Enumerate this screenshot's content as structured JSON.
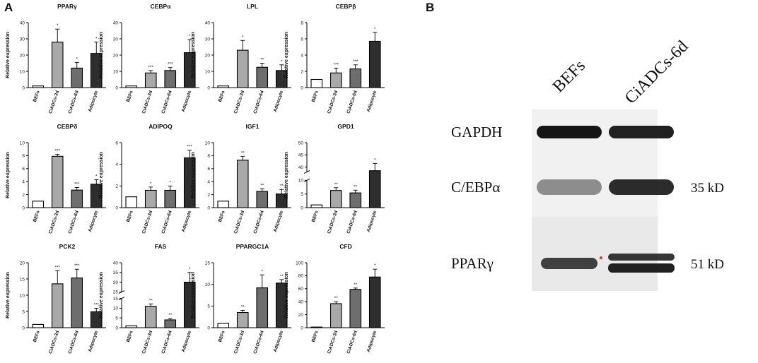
{
  "panel_a_label": "A",
  "panel_b_label": "B",
  "chart_data": [
    {
      "type": "bar",
      "title": "PPARγ",
      "ylabel": "Relative expression",
      "ylim": [
        0,
        40
      ],
      "yticks": [
        0,
        10,
        20,
        30,
        40
      ],
      "categories": [
        "BEFs",
        "CiADCs-3d",
        "CiADCs-6d",
        "Adipocyte"
      ],
      "values": [
        1,
        28,
        12,
        21
      ],
      "errors": [
        0,
        8,
        3.5,
        7
      ],
      "significance": [
        "",
        "*",
        "*",
        "*"
      ]
    },
    {
      "type": "bar",
      "title": "CEBPα",
      "ylabel": "Relative expression",
      "ylim": [
        0,
        40
      ],
      "yticks": [
        0,
        10,
        20,
        30,
        40
      ],
      "categories": [
        "BEFs",
        "CiADCs-3d",
        "CiADCs-6d",
        "Adipocyte"
      ],
      "values": [
        1,
        9,
        10.5,
        21.5
      ],
      "errors": [
        0,
        1.5,
        1.8,
        8
      ],
      "significance": [
        "",
        "***",
        "***",
        "*"
      ]
    },
    {
      "type": "bar",
      "title": "LPL",
      "ylabel": "Relative expression",
      "ylim": [
        0,
        40
      ],
      "yticks": [
        0,
        10,
        20,
        30,
        40
      ],
      "categories": [
        "BEFs",
        "CiADCs-3d",
        "CiADCs-6d",
        "Adipocyte"
      ],
      "values": [
        1,
        23,
        12.5,
        10.5
      ],
      "errors": [
        0,
        6,
        2.5,
        3.5
      ],
      "significance": [
        "",
        "*",
        "**",
        "*"
      ]
    },
    {
      "type": "bar",
      "title": "CEBPβ",
      "ylabel": "Relative expression",
      "ylim": [
        0,
        8
      ],
      "yticks": [
        0,
        2,
        4,
        6,
        8
      ],
      "categories": [
        "BEFs",
        "CiADCs-3d",
        "CiADCs-6d",
        "Adipocyte"
      ],
      "values": [
        1,
        1.8,
        2.3,
        5.7
      ],
      "errors": [
        0,
        0.6,
        0.5,
        1.1
      ],
      "significance": [
        "",
        "***",
        "***",
        "*"
      ]
    },
    {
      "type": "bar",
      "title": "CEBPδ",
      "ylabel": "Relative expression",
      "ylim": [
        0,
        10
      ],
      "yticks": [
        0,
        2,
        4,
        6,
        8,
        10
      ],
      "categories": [
        "BEFs",
        "CiADCs-3d",
        "CiADCs-6d",
        "Adipocyte"
      ],
      "values": [
        1,
        7.9,
        2.7,
        3.6
      ],
      "errors": [
        0,
        0.3,
        0.4,
        0.7
      ],
      "significance": [
        "",
        "***",
        "***",
        "*"
      ]
    },
    {
      "type": "bar",
      "title": "ADIPOQ",
      "ylabel": "Relative expression",
      "ylim": [
        0,
        6
      ],
      "yticks": [
        0,
        2,
        4,
        6
      ],
      "categories": [
        "BEFs",
        "CiADCs-3d",
        "CiADCs-6d",
        "Adipocyte"
      ],
      "values": [
        1,
        1.6,
        1.6,
        4.6
      ],
      "errors": [
        0,
        0.3,
        0.4,
        0.7
      ],
      "significance": [
        "",
        "*",
        "*",
        "***"
      ]
    },
    {
      "type": "bar",
      "title": "IGF1",
      "ylabel": "Relative expression",
      "ylim": [
        0,
        10
      ],
      "yticks": [
        0,
        2,
        4,
        6,
        8,
        10
      ],
      "categories": [
        "BEFs",
        "CiADCs-3d",
        "CiADCs-6d",
        "Adipocyte"
      ],
      "values": [
        1,
        7.3,
        2.5,
        2.1
      ],
      "errors": [
        0,
        0.6,
        0.4,
        0.7
      ],
      "significance": [
        "",
        "**",
        "**",
        "**"
      ]
    },
    {
      "type": "bar",
      "title": "GPD1",
      "ylabel": "Relative expression",
      "broken_axis": true,
      "yticks": [
        "0",
        "5",
        "10",
        "40",
        "45",
        "50"
      ],
      "categories": [
        "BEFs",
        "CiADCs-3d",
        "CiADCs-6d",
        "Adipocyte"
      ],
      "values": [
        1,
        6.3,
        5.4,
        38.5
      ],
      "errors": [
        0,
        1,
        1,
        3
      ],
      "significance": [
        "",
        "**",
        "**",
        "*"
      ]
    },
    {
      "type": "bar",
      "title": "PCK2",
      "ylabel": "Relative expression",
      "ylim": [
        0,
        20
      ],
      "yticks": [
        0,
        5,
        10,
        15,
        20
      ],
      "categories": [
        "BEFs",
        "CiADCs-3d",
        "CiADCs-6d",
        "Adipocyte"
      ],
      "values": [
        1,
        13.5,
        15.3,
        4.9
      ],
      "errors": [
        0,
        4,
        2.7,
        1.1
      ],
      "significance": [
        "",
        "***",
        "***",
        "***"
      ]
    },
    {
      "type": "bar",
      "title": "FAS",
      "ylabel": "Relative expression",
      "broken_axis": true,
      "yticks": [
        "0",
        "5",
        "10",
        "15",
        "25",
        "30",
        "35",
        "40"
      ],
      "categories": [
        "BEFs",
        "CiADCs-3d",
        "CiADCs-6d",
        "Adipocyte"
      ],
      "values": [
        1,
        11,
        4,
        30
      ],
      "errors": [
        0,
        1.2,
        0.7,
        5
      ],
      "significance": [
        "",
        "**",
        "**",
        "*"
      ]
    },
    {
      "type": "bar",
      "title": "PPARGC1A",
      "ylabel": "Relative expression",
      "ylim": [
        0,
        15
      ],
      "yticks": [
        0,
        5,
        10,
        15
      ],
      "categories": [
        "BEFs",
        "CiADCs-3d",
        "CiADCs-6d",
        "Adipocyte"
      ],
      "values": [
        1,
        3.5,
        9.2,
        10.3
      ],
      "errors": [
        0,
        0.5,
        3,
        0.8
      ],
      "significance": [
        "",
        "**",
        "*",
        "**"
      ]
    },
    {
      "type": "bar",
      "title": "CFD",
      "ylabel": "Relative expression",
      "ylim": [
        0,
        100
      ],
      "yticks": [
        0,
        20,
        40,
        60,
        80,
        100
      ],
      "categories": [
        "BEFs",
        "CiADCs-3d",
        "CiADCs-6d",
        "Adipocyte"
      ],
      "values": [
        1,
        37,
        59,
        78
      ],
      "errors": [
        0,
        3,
        2,
        12
      ],
      "significance": [
        "",
        "**",
        "**",
        "*"
      ]
    }
  ],
  "western_blot": {
    "lanes": [
      "BEFs",
      "CiADCs-6d"
    ],
    "rows": [
      {
        "protein": "GAPDH",
        "kd": "",
        "intensity": [
          1.0,
          0.95
        ]
      },
      {
        "protein": "C/EBPα",
        "kd": "35 kD",
        "intensity": [
          0.45,
          0.9
        ]
      },
      {
        "protein": "PPARγ",
        "kd": "51 kD",
        "intensity": [
          0.8,
          0.95
        ]
      }
    ]
  },
  "colors": {
    "bar_fills": [
      "#ffffff",
      "#a9a9a9",
      "#6e6e6e",
      "#2e2e2e"
    ],
    "axis": "#000000",
    "blot_background": "#f1f1f1",
    "band": "#151515",
    "marker_dot": "#e03030"
  }
}
